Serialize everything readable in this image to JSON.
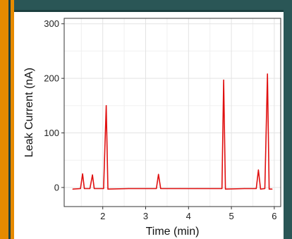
{
  "chart_data": {
    "type": "line",
    "xlabel": "Time (min)",
    "ylabel": "Leak Current (nA)",
    "xlim": [
      1.1,
      6.15
    ],
    "ylim": [
      -35,
      310
    ],
    "xticks": [
      2,
      3,
      4,
      5,
      6
    ],
    "yticks": [
      0,
      100,
      200,
      300
    ],
    "grid": true,
    "series": [
      {
        "color": "#e01010",
        "x": [
          1.3,
          1.48,
          1.53,
          1.57,
          1.7,
          1.76,
          1.8,
          2.02,
          2.08,
          2.12,
          2.6,
          3.25,
          3.3,
          3.35,
          3.8,
          4.2,
          4.78,
          4.82,
          4.86,
          5.3,
          5.58,
          5.63,
          5.68,
          5.78,
          5.84,
          5.88,
          5.95
        ],
        "y": [
          -3,
          -2,
          25,
          -2,
          -2,
          23,
          -2,
          -2,
          150,
          -3,
          -2,
          -2,
          24,
          -2,
          -2,
          -2,
          -2,
          197,
          -3,
          -2,
          -2,
          32,
          -3,
          -2,
          208,
          -3,
          -3
        ]
      }
    ]
  }
}
